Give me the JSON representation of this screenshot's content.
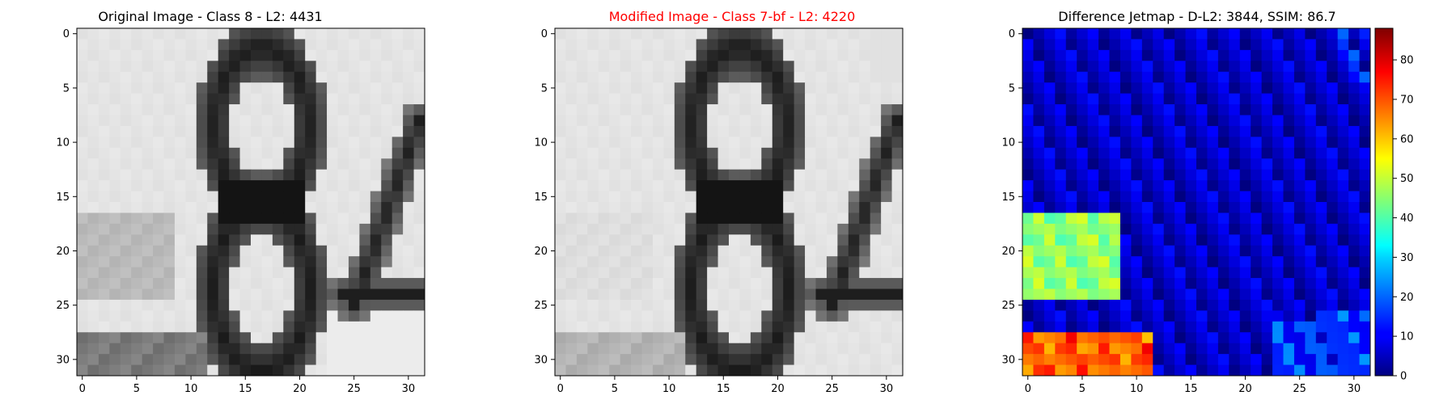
{
  "figure": {
    "background": "#ffffff"
  },
  "chart_data": [
    {
      "type": "heatmap",
      "title": "Original Image - Class 8 - L2: 4431",
      "title_color": "#000000",
      "colormap": "gray",
      "xlim": [
        0,
        31
      ],
      "ylim": [
        0,
        31
      ],
      "xticks": [
        "0",
        "5",
        "10",
        "15",
        "20",
        "25",
        "30"
      ],
      "yticks": [
        "0",
        "5",
        "10",
        "15",
        "20",
        "25",
        "30"
      ],
      "glyph": "8"
    },
    {
      "type": "heatmap",
      "title": "Modified Image - Class 7-bf - L2: 4220",
      "title_color": "#ff0000",
      "colormap": "gray",
      "xlim": [
        0,
        31
      ],
      "ylim": [
        0,
        31
      ],
      "xticks": [
        "0",
        "5",
        "10",
        "15",
        "20",
        "25",
        "30"
      ],
      "yticks": [
        "0",
        "5",
        "10",
        "15",
        "20",
        "25",
        "30"
      ],
      "glyph": "8"
    },
    {
      "type": "heatmap",
      "title": "Difference Jetmap - D-L2: 3844, SSIM: 86.7",
      "title_color": "#000000",
      "colormap": "jet",
      "xlim": [
        0,
        31
      ],
      "ylim": [
        0,
        31
      ],
      "xticks": [
        "0",
        "5",
        "10",
        "15",
        "20",
        "25",
        "30"
      ],
      "yticks": [
        "0",
        "5",
        "10",
        "15",
        "20",
        "25",
        "30"
      ],
      "colorbar": {
        "range": [
          0,
          88
        ],
        "ticks": [
          "0",
          "10",
          "20",
          "30",
          "40",
          "50",
          "60",
          "70",
          "80"
        ]
      }
    }
  ]
}
